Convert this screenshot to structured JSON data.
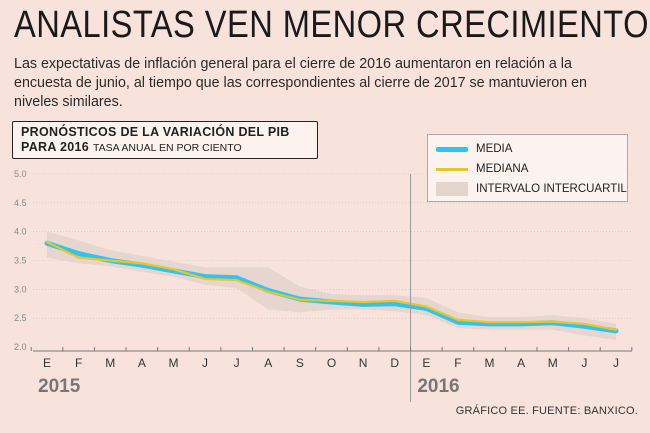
{
  "headline": "ANALISTAS VEN MENOR CRECIMIENTO",
  "subtitle": "Las expectativas de inflación general para el cierre de 2016 aumentaron en relación a la encuesta de junio, al tiempo que las correspondientes al cierre de 2017 se mantuvieron en niveles similares.",
  "credit": "GRÁFICO EE. FUENTE: BANXICO.",
  "colors": {
    "media": "#2fc4ef",
    "mediana": "#e6c62a",
    "range": "#e3d4cd",
    "background": "#f8e3dc"
  },
  "chart_data": {
    "type": "line",
    "title_line1": "PRONÓSTICOS DE LA VARIACIÓN DEL PIB",
    "title_line2": "PARA 2016",
    "unit": "TASA ANUAL EN POR CIENTO",
    "y_ticks": [
      "5.0",
      "4.5",
      "4.0",
      "3.5",
      "3.0",
      "2.5",
      "2.0"
    ],
    "ylim": [
      2.0,
      5.0
    ],
    "grid": true,
    "legend_position": "top-right",
    "categories": [
      "E",
      "F",
      "M",
      "A",
      "M",
      "J",
      "J",
      "A",
      "S",
      "O",
      "N",
      "D",
      "E",
      "F",
      "M",
      "A",
      "M",
      "J",
      "J"
    ],
    "year_labels": [
      {
        "label": "2015",
        "start_index": 0
      },
      {
        "label": "2016",
        "start_index": 12
      }
    ],
    "series": [
      {
        "name": "MEDIA",
        "values": [
          3.8,
          3.62,
          3.5,
          3.42,
          3.32,
          3.22,
          3.2,
          2.98,
          2.83,
          2.78,
          2.74,
          2.75,
          2.67,
          2.43,
          2.4,
          2.4,
          2.42,
          2.36,
          2.28
        ]
      },
      {
        "name": "MEDIANA",
        "values": [
          3.82,
          3.55,
          3.5,
          3.45,
          3.35,
          3.18,
          3.16,
          2.96,
          2.82,
          2.8,
          2.78,
          2.8,
          2.7,
          2.47,
          2.43,
          2.43,
          2.44,
          2.4,
          2.3
        ]
      },
      {
        "name": "INTERVALO INTERCUARTIL",
        "low": [
          3.55,
          3.45,
          3.4,
          3.3,
          3.22,
          3.08,
          3.02,
          2.65,
          2.6,
          2.65,
          2.65,
          2.62,
          2.55,
          2.33,
          2.3,
          2.3,
          2.3,
          2.2,
          2.12
        ],
        "high": [
          4.0,
          3.85,
          3.68,
          3.58,
          3.48,
          3.38,
          3.38,
          3.38,
          3.05,
          2.92,
          2.9,
          2.9,
          2.85,
          2.6,
          2.52,
          2.52,
          2.55,
          2.5,
          2.4
        ]
      }
    ]
  }
}
